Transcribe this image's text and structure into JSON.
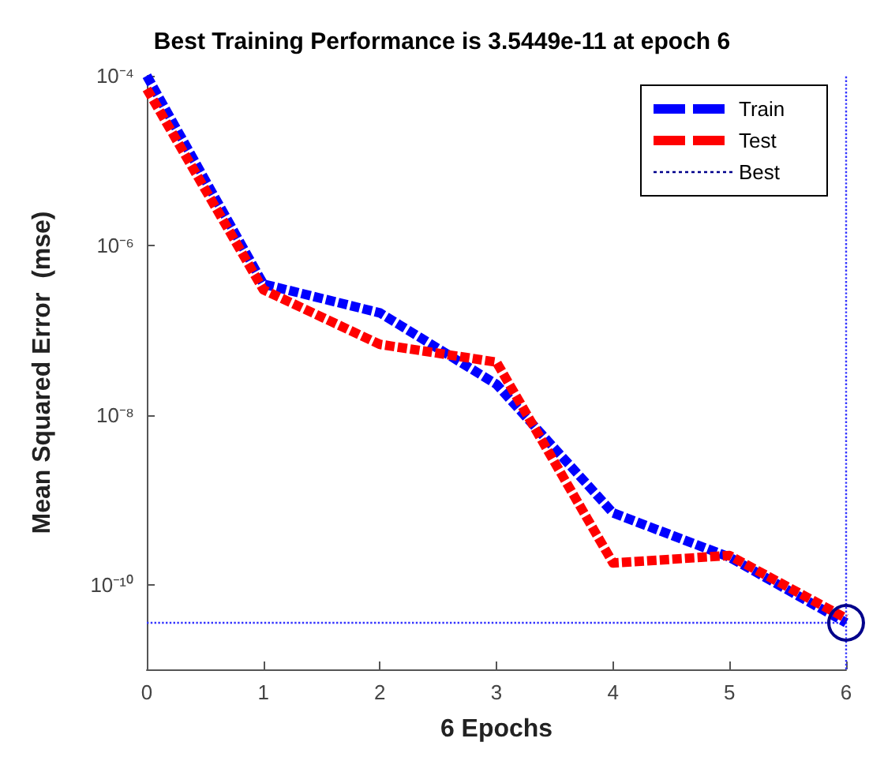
{
  "chart_data": {
    "type": "line",
    "title": "Best Training Performance is 3.5449e-11 at epoch 6",
    "xlabel": "6 Epochs",
    "ylabel": "Mean Squared Error  (mse)",
    "x": [
      0,
      1,
      2,
      3,
      4,
      5,
      6
    ],
    "series": [
      {
        "name": "Train",
        "color": "#0000ff",
        "values": [
          0.0001,
          3.5e-07,
          1.6e-07,
          2.3e-08,
          7e-10,
          2.1e-10,
          3.5449e-11
        ],
        "line_style": "dashed",
        "marker": "none"
      },
      {
        "name": "Test",
        "color": "#ff0000",
        "values": [
          7e-05,
          3e-07,
          6.8e-08,
          4.2e-08,
          1.8e-10,
          2.2e-10,
          4e-11
        ],
        "line_style": "dashed",
        "marker": "none"
      },
      {
        "name": "Best",
        "color": "#00008b",
        "x": [
          6
        ],
        "values": [
          3.5449e-11
        ],
        "line_style": "dotted",
        "marker": "circle"
      }
    ],
    "ref_lines": [
      {
        "axis": "y",
        "value": 3.5449e-11,
        "color": "#3333ff",
        "line_style": "dotted"
      },
      {
        "axis": "x",
        "value": 6,
        "color": "#3333ff",
        "line_style": "dotted"
      }
    ],
    "log": "y",
    "xlim": [
      0,
      6
    ],
    "xticks": [
      0,
      1,
      2,
      3,
      4,
      5,
      6
    ],
    "ylim": [
      1e-11,
      0.0001
    ],
    "yticks": [
      {
        "value": 1e-10,
        "label": "10⁻¹⁰"
      },
      {
        "value": 1e-08,
        "label": "10⁻⁸"
      },
      {
        "value": 1e-06,
        "label": "10⁻⁶"
      },
      {
        "value": 0.0001,
        "label": "10⁻⁴"
      }
    ],
    "grid": false,
    "legend": "top right"
  }
}
